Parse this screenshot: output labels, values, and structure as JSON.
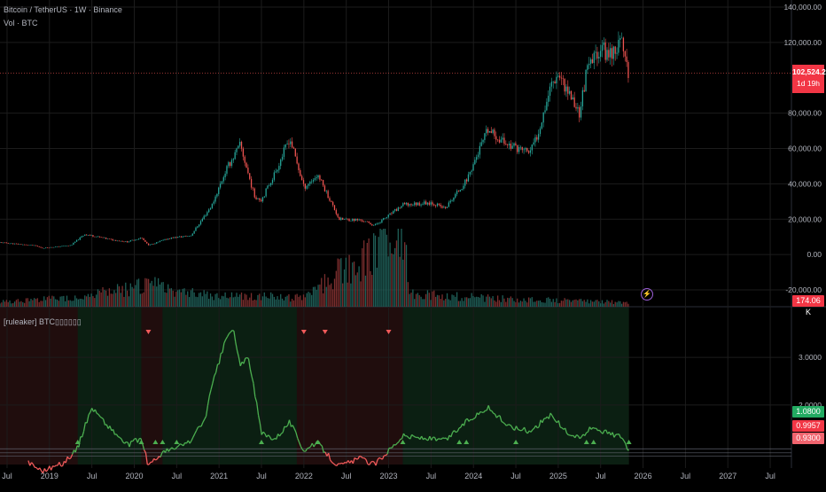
{
  "header": {
    "symbol_line": "Bitcoin / TetherUS · 1W · Binance",
    "volume_line": "Vol · BTC",
    "indicator_line": "[ruleaker] BTC▯▯▯▯▯▯"
  },
  "colors": {
    "background": "#000000",
    "up": "#26a69a",
    "down": "#ef5350",
    "osc_green": "#4caf50",
    "osc_red": "#f05a5a",
    "bg_green": "#0b1f12",
    "bg_red": "#200d0d",
    "axis_text": "#b2b5be",
    "grid": "#1c1c1c"
  },
  "badges": {
    "price_value": "102,524.28",
    "price_countdown": "1d 19h",
    "volume_value": "174.06 K",
    "osc_high": "1.0800",
    "osc_mid": "0.9957",
    "osc_low": "0.9300"
  },
  "chart_data": [
    {
      "type": "candlestick",
      "name": "price",
      "yticks": [
        "140,000.00",
        "120,000.00",
        "80,000.00",
        "60,000.00",
        "40,000.00",
        "20,000.00",
        "0.00",
        "-20,000.00"
      ],
      "ylim": [
        -20000,
        140000
      ],
      "last_value": 102524.28,
      "keypoints": [
        [
          "2018-06",
          6800
        ],
        [
          "2018-11",
          5000
        ],
        [
          "2018-12",
          3600
        ],
        [
          "2019-04",
          5200
        ],
        [
          "2019-06",
          11500
        ],
        [
          "2019-10",
          8200
        ],
        [
          "2019-12",
          7200
        ],
        [
          "2020-02",
          9500
        ],
        [
          "2020-03",
          5200
        ],
        [
          "2020-06",
          9300
        ],
        [
          "2020-09",
          10700
        ],
        [
          "2020-12",
          28000
        ],
        [
          "2021-02",
          48000
        ],
        [
          "2021-04",
          62000
        ],
        [
          "2021-06",
          33000
        ],
        [
          "2021-07",
          31000
        ],
        [
          "2021-09",
          47000
        ],
        [
          "2021-11",
          66000
        ],
        [
          "2022-01",
          38000
        ],
        [
          "2022-03",
          45000
        ],
        [
          "2022-06",
          20000
        ],
        [
          "2022-09",
          19500
        ],
        [
          "2022-11",
          16500
        ],
        [
          "2023-01",
          22000
        ],
        [
          "2023-03",
          28000
        ],
        [
          "2023-07",
          29500
        ],
        [
          "2023-09",
          26000
        ],
        [
          "2023-12",
          42000
        ],
        [
          "2024-03",
          70000
        ],
        [
          "2024-06",
          62000
        ],
        [
          "2024-09",
          58000
        ],
        [
          "2024-10",
          67000
        ],
        [
          "2024-12",
          97000
        ],
        [
          "2025-01",
          103000
        ],
        [
          "2025-04",
          80000
        ],
        [
          "2025-05",
          103000
        ],
        [
          "2025-07",
          118000
        ],
        [
          "2025-08",
          113000
        ],
        [
          "2025-10",
          120000
        ],
        [
          "2025-11",
          102524
        ]
      ]
    },
    {
      "type": "bar",
      "name": "volume",
      "unit": "K BTC",
      "last_value": 174.06,
      "keypoints": [
        [
          "2018-06",
          200
        ],
        [
          "2019-06",
          400
        ],
        [
          "2020-03",
          900
        ],
        [
          "2020-12",
          450
        ],
        [
          "2021-06",
          420
        ],
        [
          "2022-01",
          350
        ],
        [
          "2022-06",
          1400
        ],
        [
          "2022-11",
          2100
        ],
        [
          "2023-01",
          2800
        ],
        [
          "2023-03",
          3100
        ],
        [
          "2023-04",
          500
        ],
        [
          "2024-03",
          350
        ],
        [
          "2025-01",
          250
        ],
        [
          "2025-11",
          174
        ]
      ]
    },
    {
      "type": "line",
      "name": "[ruleaker] BTC▯▯▯▯▯▯",
      "yticks": [
        "3.0000",
        "2.0000"
      ],
      "ylim": [
        0.75,
        3.95
      ],
      "levels": [
        1.08,
        0.9957,
        0.93
      ],
      "keypoints": [
        [
          "2018-10",
          0.8
        ],
        [
          "2018-12",
          0.62
        ],
        [
          "2019-03",
          0.78
        ],
        [
          "2019-05",
          1.1
        ],
        [
          "2019-06",
          1.55
        ],
        [
          "2019-07",
          1.95
        ],
        [
          "2019-09",
          1.6
        ],
        [
          "2019-10",
          1.45
        ],
        [
          "2019-12",
          1.15
        ],
        [
          "2020-02",
          1.3
        ],
        [
          "2020-03",
          0.72
        ],
        [
          "2020-05",
          1.0
        ],
        [
          "2020-07",
          1.1
        ],
        [
          "2020-09",
          1.25
        ],
        [
          "2020-11",
          1.7
        ],
        [
          "2020-12",
          2.4
        ],
        [
          "2021-02",
          3.4
        ],
        [
          "2021-03",
          3.6
        ],
        [
          "2021-04",
          2.8
        ],
        [
          "2021-05",
          3.05
        ],
        [
          "2021-06",
          2.3
        ],
        [
          "2021-07",
          1.4
        ],
        [
          "2021-09",
          1.3
        ],
        [
          "2021-11",
          1.65
        ],
        [
          "2022-01",
          1.05
        ],
        [
          "2022-03",
          1.2
        ],
        [
          "2022-05",
          0.85
        ],
        [
          "2022-06",
          0.72
        ],
        [
          "2022-09",
          0.88
        ],
        [
          "2022-11",
          0.75
        ],
        [
          "2023-01",
          1.05
        ],
        [
          "2023-03",
          1.35
        ],
        [
          "2023-06",
          1.3
        ],
        [
          "2023-09",
          1.25
        ],
        [
          "2023-12",
          1.65
        ],
        [
          "2024-03",
          1.95
        ],
        [
          "2024-06",
          1.55
        ],
        [
          "2024-09",
          1.45
        ],
        [
          "2024-12",
          1.8
        ],
        [
          "2025-02",
          1.45
        ],
        [
          "2025-04",
          1.3
        ],
        [
          "2025-06",
          1.55
        ],
        [
          "2025-08",
          1.4
        ],
        [
          "2025-10",
          1.35
        ],
        [
          "2025-11",
          1.05
        ]
      ],
      "green_zones": [
        [
          "2019-05",
          "2020-02"
        ],
        [
          "2020-05",
          "2021-12"
        ],
        [
          "2023-03",
          "2025-11"
        ]
      ],
      "buy_markers": [
        "2019-05",
        "2020-02",
        "2020-04",
        "2020-05",
        "2020-07",
        "2021-07",
        "2022-03",
        "2023-03",
        "2023-11",
        "2023-12",
        "2024-07",
        "2025-05",
        "2025-06",
        "2025-11"
      ],
      "sell_markers": [
        "2020-03",
        "2022-01",
        "2022-04",
        "2023-01"
      ]
    }
  ],
  "x_axis": {
    "labels": [
      {
        "date": "2018-07",
        "text": "Jul"
      },
      {
        "date": "2019-01",
        "text": "2019"
      },
      {
        "date": "2019-07",
        "text": "Jul"
      },
      {
        "date": "2020-01",
        "text": "2020"
      },
      {
        "date": "2020-07",
        "text": "Jul"
      },
      {
        "date": "2021-01",
        "text": "2021"
      },
      {
        "date": "2021-07",
        "text": "Jul"
      },
      {
        "date": "2022-01",
        "text": "2022"
      },
      {
        "date": "2022-07",
        "text": "Jul"
      },
      {
        "date": "2023-01",
        "text": "2023"
      },
      {
        "date": "2023-07",
        "text": "Jul"
      },
      {
        "date": "2024-01",
        "text": "2024"
      },
      {
        "date": "2024-07",
        "text": "Jul"
      },
      {
        "date": "2025-01",
        "text": "2025"
      },
      {
        "date": "2025-07",
        "text": "Jul"
      },
      {
        "date": "2026-01",
        "text": "2026"
      },
      {
        "date": "2026-07",
        "text": "Jul"
      },
      {
        "date": "2027-01",
        "text": "2027"
      },
      {
        "date": "2027-07",
        "text": "Jul"
      }
    ]
  }
}
